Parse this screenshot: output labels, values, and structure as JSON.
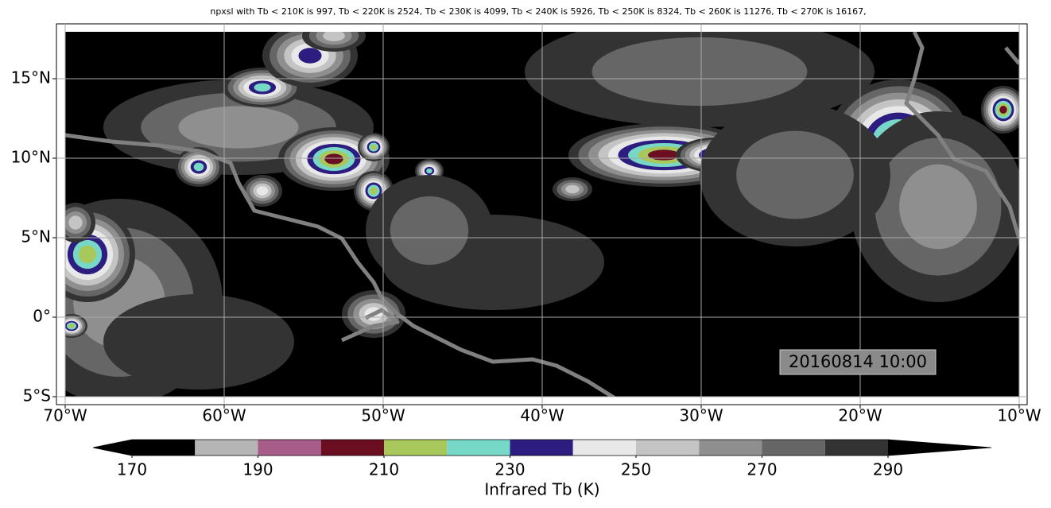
{
  "title": "npxsl with Tb < 210K is 997,  Tb < 220K is 2524,  Tb < 230K is 4099,  Tb < 240K is 5926,  Tb < 250K is 8324,  Tb < 260K is 11276,  Tb < 270K is 16167,",
  "map": {
    "lon_ticks": [
      {
        "value": -70,
        "label": "70°W"
      },
      {
        "value": -60,
        "label": "60°W"
      },
      {
        "value": -50,
        "label": "50°W"
      },
      {
        "value": -40,
        "label": "40°W"
      },
      {
        "value": -30,
        "label": "30°W"
      },
      {
        "value": -20,
        "label": "20°W"
      },
      {
        "value": -10,
        "label": "10°W"
      }
    ],
    "lat_ticks": [
      {
        "value": -5,
        "label": "5°S"
      },
      {
        "value": 0,
        "label": "0°"
      },
      {
        "value": 5,
        "label": "5°N"
      },
      {
        "value": 10,
        "label": "10°N"
      },
      {
        "value": 15,
        "label": "15°N"
      }
    ],
    "timestamp": "20160814 10:00"
  },
  "colorbar": {
    "label": "Infrared Tb (K)",
    "levels": [
      170,
      180,
      190,
      200,
      210,
      220,
      230,
      240,
      250,
      260,
      270,
      280,
      290
    ],
    "colors": [
      "#000000",
      "#b5b5b5",
      "#a85c8a",
      "#6b0e22",
      "#a8c85c",
      "#77d8c8",
      "#2d1d80",
      "#e8e8e8",
      "#c4c4c4",
      "#8f8f8f",
      "#666666",
      "#333333"
    ],
    "ticks": [
      170,
      190,
      210,
      230,
      250,
      270,
      290
    ]
  }
}
